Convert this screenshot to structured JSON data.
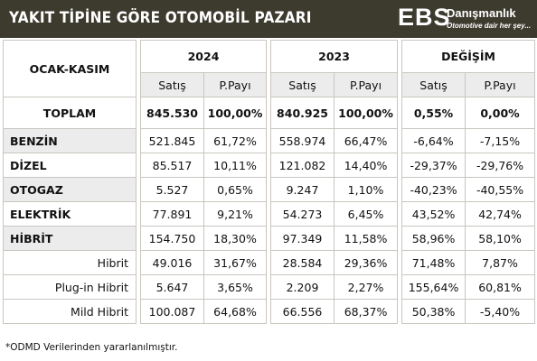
{
  "header": {
    "title": "YAKIT TİPİNE GÖRE OTOMOBİL PAZARI",
    "logo_main": "EBS",
    "logo_name": "Danışmanlık",
    "logo_tagline": "Otomotive dair her şey..."
  },
  "table": {
    "period_label": "OCAK-KASIM",
    "year1": "2024",
    "year2": "2023",
    "change": "DEĞİŞİM",
    "col_sales": "Satış",
    "col_share": "P.Payı",
    "rows": [
      {
        "label": "TOPLAM",
        "s24": "845.530",
        "p24": "100,00%",
        "s23": "840.925",
        "p23": "100,00%",
        "cs": "0,55%",
        "cp": "0,00%"
      },
      {
        "label": "BENZİN",
        "s24": "521.845",
        "p24": "61,72%",
        "s23": "558.974",
        "p23": "66,47%",
        "cs": "-6,64%",
        "cp": "-7,15%"
      },
      {
        "label": "DİZEL",
        "s24": "85.517",
        "p24": "10,11%",
        "s23": "121.082",
        "p23": "14,40%",
        "cs": "-29,37%",
        "cp": "-29,76%"
      },
      {
        "label": "OTOGAZ",
        "s24": "5.527",
        "p24": "0,65%",
        "s23": "9.247",
        "p23": "1,10%",
        "cs": "-40,23%",
        "cp": "-40,55%"
      },
      {
        "label": "ELEKTRİK",
        "s24": "77.891",
        "p24": "9,21%",
        "s23": "54.273",
        "p23": "6,45%",
        "cs": "43,52%",
        "cp": "42,74%"
      },
      {
        "label": "HİBRİT",
        "s24": "154.750",
        "p24": "18,30%",
        "s23": "97.349",
        "p23": "11,58%",
        "cs": "58,96%",
        "cp": "58,10%"
      },
      {
        "label": "Hibrit",
        "s24": "49.016",
        "p24": "31,67%",
        "s23": "28.584",
        "p23": "29,36%",
        "cs": "71,48%",
        "cp": "7,87%"
      },
      {
        "label": "Plug-in Hibrit",
        "s24": "5.647",
        "p24": "3,65%",
        "s23": "2.209",
        "p23": "2,27%",
        "cs": "155,64%",
        "cp": "60,81%"
      },
      {
        "label": "Mild Hibrit",
        "s24": "100.087",
        "p24": "64,68%",
        "s23": "66.556",
        "p23": "68,37%",
        "cs": "50,38%",
        "cp": "-5,40%"
      }
    ]
  },
  "footnote": "*ODMD Verilerinden yararlanılmıştır."
}
